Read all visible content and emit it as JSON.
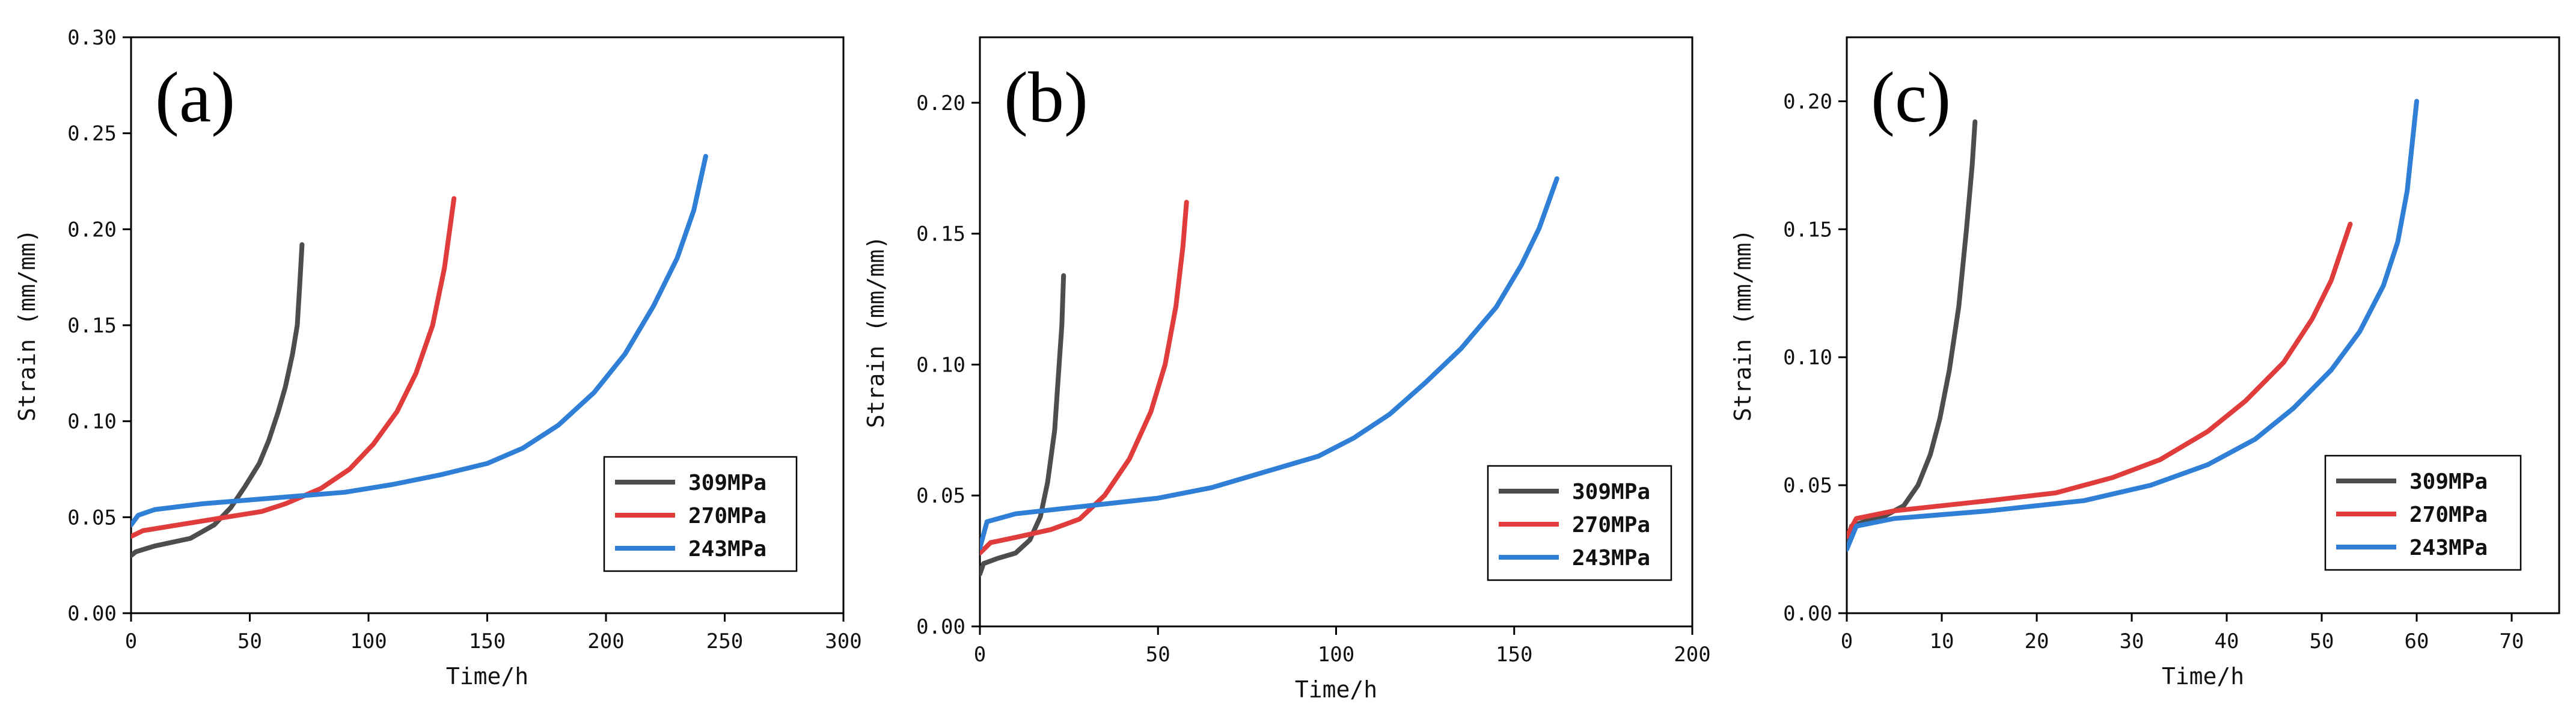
{
  "chart_data": [
    {
      "type": "line",
      "panel_label": "(a)",
      "xlabel": "Time/h",
      "ylabel": "Strain (mm/mm)",
      "xlim": [
        0,
        300
      ],
      "ylim": [
        0,
        0.3
      ],
      "xticks": [
        "0",
        "50",
        "100",
        "150",
        "200",
        "250",
        "300"
      ],
      "yticks": [
        "0.00",
        "0.05",
        "0.10",
        "0.15",
        "0.20",
        "0.25",
        "0.30"
      ],
      "legend_position": "bottom-right",
      "series": [
        {
          "name": "309MPa",
          "color": "#4d4d4d",
          "points": [
            [
              0,
              0.03
            ],
            [
              2,
              0.032
            ],
            [
              10,
              0.035
            ],
            [
              25,
              0.039
            ],
            [
              35,
              0.046
            ],
            [
              42,
              0.055
            ],
            [
              48,
              0.066
            ],
            [
              54,
              0.078
            ],
            [
              58,
              0.09
            ],
            [
              62,
              0.105
            ],
            [
              65,
              0.118
            ],
            [
              68,
              0.135
            ],
            [
              70,
              0.15
            ],
            [
              71,
              0.17
            ],
            [
              72,
              0.192
            ]
          ]
        },
        {
          "name": "270MPa",
          "color": "#e03c3c",
          "points": [
            [
              0,
              0.04
            ],
            [
              5,
              0.043
            ],
            [
              20,
              0.046
            ],
            [
              40,
              0.05
            ],
            [
              55,
              0.053
            ],
            [
              65,
              0.057
            ],
            [
              80,
              0.065
            ],
            [
              92,
              0.075
            ],
            [
              102,
              0.088
            ],
            [
              112,
              0.105
            ],
            [
              120,
              0.125
            ],
            [
              127,
              0.15
            ],
            [
              132,
              0.18
            ],
            [
              136,
              0.216
            ]
          ]
        },
        {
          "name": "243MPa",
          "color": "#2f7fd6",
          "points": [
            [
              0,
              0.046
            ],
            [
              3,
              0.051
            ],
            [
              10,
              0.054
            ],
            [
              30,
              0.057
            ],
            [
              60,
              0.06
            ],
            [
              90,
              0.063
            ],
            [
              110,
              0.067
            ],
            [
              130,
              0.072
            ],
            [
              150,
              0.078
            ],
            [
              165,
              0.086
            ],
            [
              180,
              0.098
            ],
            [
              195,
              0.115
            ],
            [
              208,
              0.135
            ],
            [
              220,
              0.16
            ],
            [
              230,
              0.185
            ],
            [
              237,
              0.21
            ],
            [
              242,
              0.238
            ]
          ]
        }
      ]
    },
    {
      "type": "line",
      "panel_label": "(b)",
      "xlabel": "Time/h",
      "ylabel": "Strain (mm/mm)",
      "xlim": [
        0,
        200
      ],
      "ylim": [
        0,
        0.225
      ],
      "xticks": [
        "0",
        "50",
        "100",
        "150",
        "200"
      ],
      "yticks": [
        "0.00",
        "0.05",
        "0.10",
        "0.15",
        "0.20"
      ],
      "legend_position": "bottom-right",
      "series": [
        {
          "name": "309MPa",
          "color": "#4d4d4d",
          "points": [
            [
              0,
              0.02
            ],
            [
              1,
              0.024
            ],
            [
              5,
              0.026
            ],
            [
              10,
              0.028
            ],
            [
              14,
              0.033
            ],
            [
              17,
              0.042
            ],
            [
              19,
              0.055
            ],
            [
              21,
              0.075
            ],
            [
              22,
              0.095
            ],
            [
              23,
              0.115
            ],
            [
              23.5,
              0.134
            ]
          ]
        },
        {
          "name": "270MPa",
          "color": "#e03c3c",
          "points": [
            [
              0,
              0.028
            ],
            [
              3,
              0.032
            ],
            [
              10,
              0.034
            ],
            [
              20,
              0.037
            ],
            [
              28,
              0.041
            ],
            [
              35,
              0.05
            ],
            [
              42,
              0.064
            ],
            [
              48,
              0.082
            ],
            [
              52,
              0.1
            ],
            [
              55,
              0.122
            ],
            [
              57,
              0.145
            ],
            [
              58,
              0.162
            ]
          ]
        },
        {
          "name": "243MPa",
          "color": "#2f7fd6",
          "points": [
            [
              0,
              0.03
            ],
            [
              2,
              0.04
            ],
            [
              10,
              0.043
            ],
            [
              30,
              0.046
            ],
            [
              50,
              0.049
            ],
            [
              65,
              0.053
            ],
            [
              80,
              0.059
            ],
            [
              95,
              0.065
            ],
            [
              105,
              0.072
            ],
            [
              115,
              0.081
            ],
            [
              125,
              0.093
            ],
            [
              135,
              0.106
            ],
            [
              145,
              0.122
            ],
            [
              152,
              0.138
            ],
            [
              157,
              0.152
            ],
            [
              162,
              0.171
            ]
          ]
        }
      ]
    },
    {
      "type": "line",
      "panel_label": "(c)",
      "xlabel": "Time/h",
      "ylabel": "Strain (mm/mm)",
      "xlim": [
        0,
        75
      ],
      "ylim": [
        0,
        0.225
      ],
      "xticks": [
        "0",
        "10",
        "20",
        "30",
        "40",
        "50",
        "60",
        "70"
      ],
      "yticks": [
        "0.00",
        "0.05",
        "0.10",
        "0.15",
        "0.20"
      ],
      "legend_position": "bottom-right",
      "series": [
        {
          "name": "309MPa",
          "color": "#4d4d4d",
          "points": [
            [
              0,
              0.028
            ],
            [
              0.5,
              0.034
            ],
            [
              2,
              0.036
            ],
            [
              4,
              0.038
            ],
            [
              6,
              0.042
            ],
            [
              7.5,
              0.05
            ],
            [
              8.8,
              0.062
            ],
            [
              9.8,
              0.076
            ],
            [
              10.8,
              0.095
            ],
            [
              11.8,
              0.12
            ],
            [
              12.6,
              0.15
            ],
            [
              13.2,
              0.175
            ],
            [
              13.5,
              0.192
            ]
          ]
        },
        {
          "name": "270MPa",
          "color": "#e03c3c",
          "points": [
            [
              0,
              0.03
            ],
            [
              1,
              0.037
            ],
            [
              5,
              0.04
            ],
            [
              15,
              0.044
            ],
            [
              22,
              0.047
            ],
            [
              28,
              0.053
            ],
            [
              33,
              0.06
            ],
            [
              38,
              0.071
            ],
            [
              42,
              0.083
            ],
            [
              46,
              0.098
            ],
            [
              49,
              0.115
            ],
            [
              51,
              0.13
            ],
            [
              53,
              0.152
            ]
          ]
        },
        {
          "name": "243MPa",
          "color": "#2f7fd6",
          "points": [
            [
              0,
              0.025
            ],
            [
              1,
              0.034
            ],
            [
              5,
              0.037
            ],
            [
              15,
              0.04
            ],
            [
              25,
              0.044
            ],
            [
              32,
              0.05
            ],
            [
              38,
              0.058
            ],
            [
              43,
              0.068
            ],
            [
              47,
              0.08
            ],
            [
              51,
              0.095
            ],
            [
              54,
              0.11
            ],
            [
              56.5,
              0.128
            ],
            [
              58,
              0.145
            ],
            [
              59,
              0.165
            ],
            [
              60,
              0.2
            ]
          ]
        }
      ]
    }
  ]
}
